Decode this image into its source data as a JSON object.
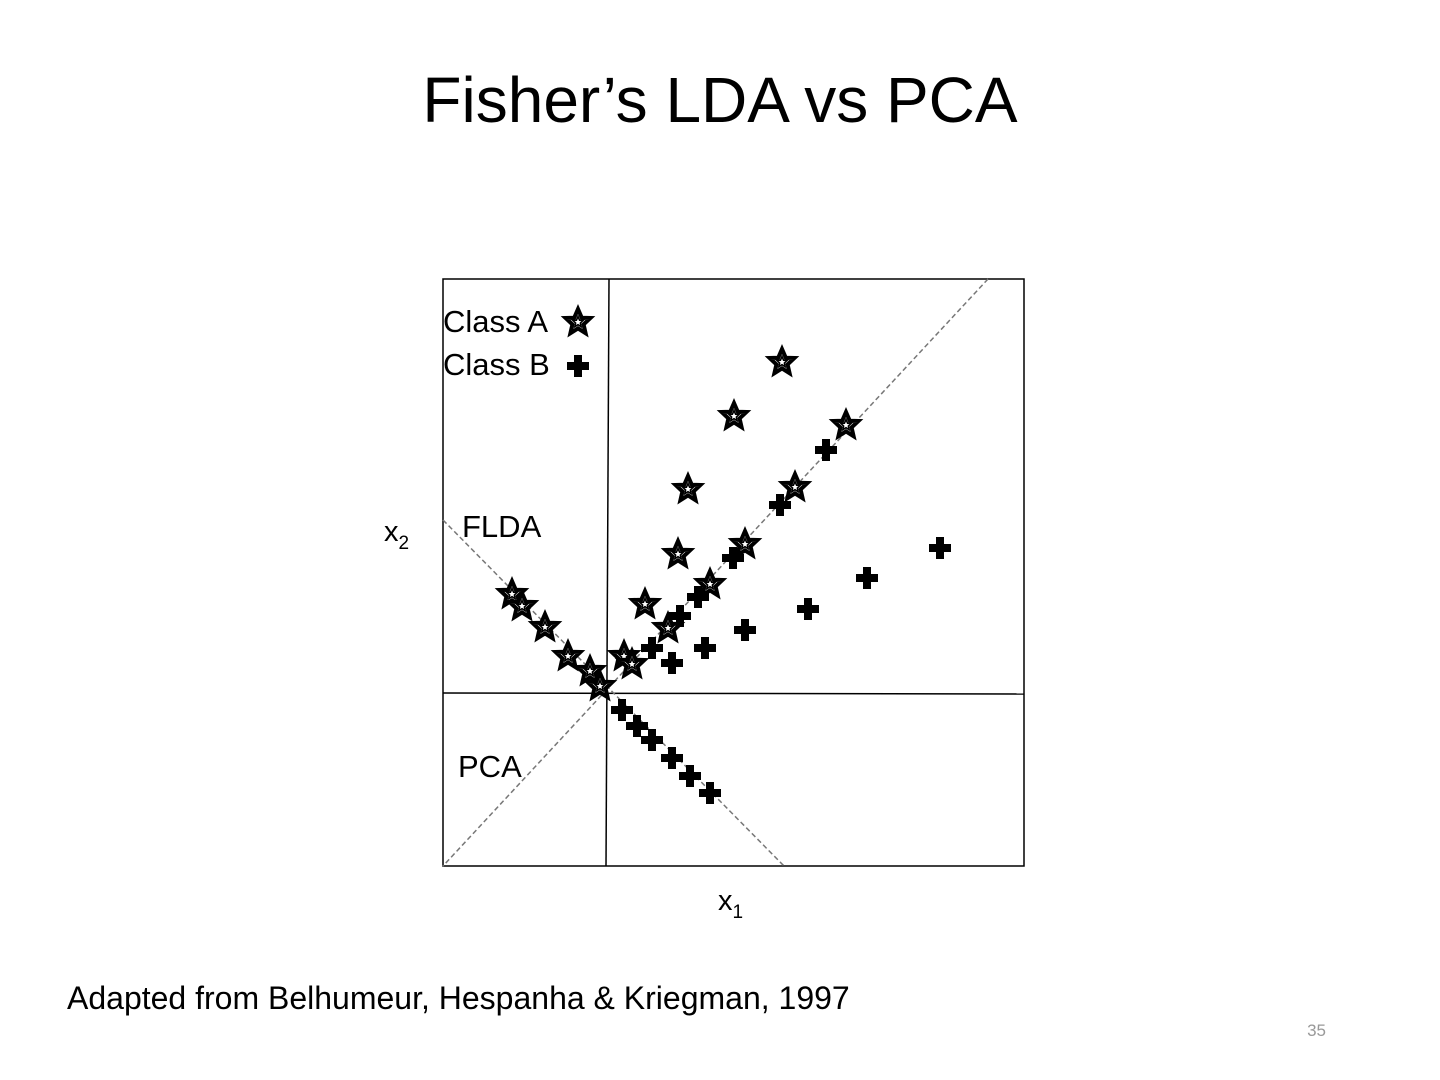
{
  "title": "Fisher’s LDA vs PCA",
  "figure": {
    "legend": [
      {
        "label": "Class A"
      },
      {
        "label": "Class B"
      }
    ],
    "labels": {
      "flda": "FLDA",
      "pca": "PCA"
    },
    "x_axis": {
      "label": "x",
      "subscript": "1"
    },
    "y_axis": {
      "label": "x",
      "subscript": "2"
    }
  },
  "citation": "Adapted from Belhumeur, Hespanha & Kriegman, 1997",
  "page_number": "35"
}
